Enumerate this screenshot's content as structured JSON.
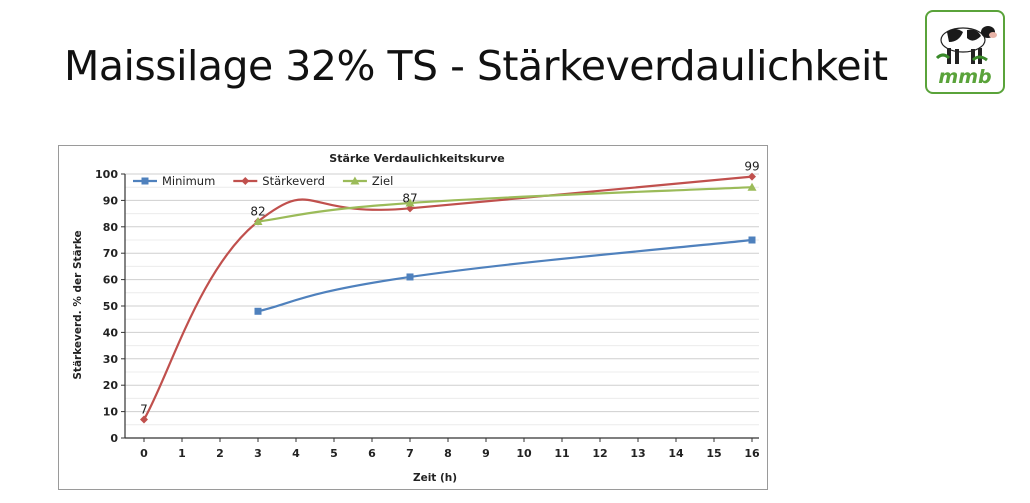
{
  "slide": {
    "title": "Maissilage 32% TS - Stärkeverdaulichkeit",
    "logo_text": "mmb"
  },
  "colors": {
    "minimum": "#4f81bd",
    "staerkeverd": "#c0504d",
    "ziel": "#9bbb59",
    "grid": "#d9d9d9",
    "logo_green": "#5aa33a"
  },
  "chart_data": {
    "type": "line",
    "title": "Stärke Verdaulichkeitskurve",
    "xlabel": "Zeit (h)",
    "ylabel": "Stärkeverd. % der Stärke",
    "categories": [
      "0",
      "1",
      "2",
      "3",
      "4",
      "5",
      "6",
      "7",
      "8",
      "9",
      "10",
      "11",
      "12",
      "13",
      "14",
      "15",
      "16"
    ],
    "x_tick_labels": [
      "0",
      "1",
      "2",
      "3",
      "4",
      "5",
      "6",
      "7",
      "8",
      "9",
      "10",
      "11",
      "12",
      "13",
      "14",
      "15",
      "16"
    ],
    "ylim": [
      0,
      100
    ],
    "y_ticks": [
      0,
      10,
      20,
      30,
      40,
      50,
      60,
      70,
      80,
      90,
      100
    ],
    "grid": true,
    "legend": "top-left",
    "smooth": true,
    "series": [
      {
        "name": "Minimum",
        "color": "#4f81bd",
        "marker": "square",
        "x": [
          3,
          7,
          16
        ],
        "values": [
          48,
          61,
          75
        ],
        "data_labels": []
      },
      {
        "name": "Stärkeverd",
        "color": "#c0504d",
        "marker": "diamond",
        "x": [
          0,
          3,
          7,
          16
        ],
        "values": [
          7,
          82,
          87,
          99
        ],
        "data_labels": [
          {
            "index": 0,
            "text": "7"
          },
          {
            "index": 1,
            "text": "82"
          },
          {
            "index": 2,
            "text": "87"
          },
          {
            "index": 3,
            "text": "99"
          }
        ]
      },
      {
        "name": "Ziel",
        "color": "#9bbb59",
        "marker": "triangle",
        "x": [
          3,
          7,
          16
        ],
        "values": [
          82,
          89,
          95
        ],
        "data_labels": []
      }
    ]
  }
}
